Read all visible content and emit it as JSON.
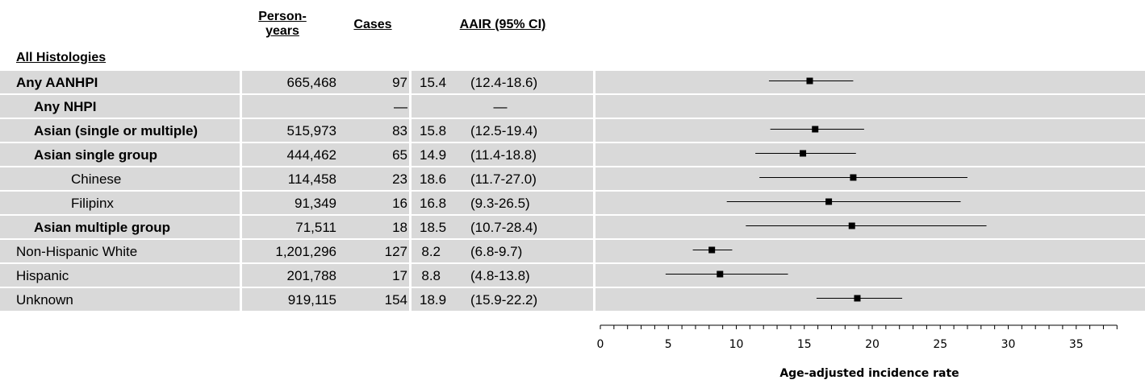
{
  "columns": {
    "person_years": "Person-\nyears",
    "cases": "Cases",
    "aair": "AAIR (95% CI)"
  },
  "section_label": "All Histologies",
  "rows": [
    {
      "label": "Any AANHPI",
      "bold": true,
      "indent": 0,
      "person_years": "665,468",
      "cases": "97",
      "rate": "15.4",
      "ci": "(12.4-18.6)"
    },
    {
      "label": "Any NHPI",
      "bold": true,
      "indent": 1,
      "person_years": "",
      "cases": "—",
      "rate": "—",
      "ci": ""
    },
    {
      "label": "Asian (single or multiple)",
      "bold": true,
      "indent": 1,
      "person_years": "515,973",
      "cases": "83",
      "rate": "15.8",
      "ci": "(12.5-19.4)"
    },
    {
      "label": "Asian single group",
      "bold": true,
      "indent": 2,
      "person_years": "444,462",
      "cases": "65",
      "rate": "14.9",
      "ci": "(11.4-18.8)"
    },
    {
      "label": "Chinese",
      "bold": false,
      "indent": 3,
      "person_years": "114,458",
      "cases": "23",
      "rate": "18.6",
      "ci": "(11.7-27.0)"
    },
    {
      "label": "Filipinx",
      "bold": false,
      "indent": 3,
      "person_years": "91,349",
      "cases": "16",
      "rate": "16.8",
      "ci": "(9.3-26.5)"
    },
    {
      "label": "Asian multiple group",
      "bold": true,
      "indent": 2,
      "person_years": "71,511",
      "cases": "18",
      "rate": "18.5",
      "ci": "(10.7-28.4)"
    },
    {
      "label": "Non-Hispanic White",
      "bold": false,
      "indent": 0,
      "person_years": "1,201,296",
      "cases": "127",
      "rate": "8.2",
      "ci": "(6.8-9.7)"
    },
    {
      "label": "Hispanic",
      "bold": false,
      "indent": 0,
      "person_years": "201,788",
      "cases": "17",
      "rate": "8.8",
      "ci": "(4.8-13.8)"
    },
    {
      "label": "Unknown",
      "bold": false,
      "indent": 0,
      "person_years": "919,115",
      "cases": "154",
      "rate": "18.9",
      "ci": "(15.9-22.2)"
    }
  ],
  "chart_data": {
    "type": "scatter",
    "xlabel": "Age-adjusted incidence rate",
    "ylabel": "",
    "xlim": [
      0,
      38
    ],
    "xticks": [
      0,
      5,
      10,
      15,
      20,
      25,
      30,
      35
    ],
    "grid": false,
    "points": [
      {
        "category": "Any AANHPI",
        "estimate": 15.4,
        "lower": 12.4,
        "upper": 18.6
      },
      {
        "category": "Any NHPI",
        "estimate": null,
        "lower": null,
        "upper": null
      },
      {
        "category": "Asian (single or multiple)",
        "estimate": 15.8,
        "lower": 12.5,
        "upper": 19.4
      },
      {
        "category": "Asian single group",
        "estimate": 14.9,
        "lower": 11.4,
        "upper": 18.8
      },
      {
        "category": "Chinese",
        "estimate": 18.6,
        "lower": 11.7,
        "upper": 27.0
      },
      {
        "category": "Filipinx",
        "estimate": 16.8,
        "lower": 9.3,
        "upper": 26.5
      },
      {
        "category": "Asian multiple group",
        "estimate": 18.5,
        "lower": 10.7,
        "upper": 28.4
      },
      {
        "category": "Non-Hispanic White",
        "estimate": 8.2,
        "lower": 6.8,
        "upper": 9.7
      },
      {
        "category": "Hispanic",
        "estimate": 8.8,
        "lower": 4.8,
        "upper": 13.8
      },
      {
        "category": "Unknown",
        "estimate": 18.9,
        "lower": 15.9,
        "upper": 22.2
      }
    ]
  }
}
